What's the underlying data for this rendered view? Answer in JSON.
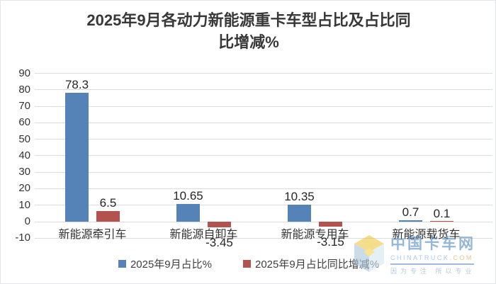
{
  "title": {
    "line1": "2025年9月各动力新能源重卡车型占比及占比同",
    "line2": "比增减%"
  },
  "chart_data": {
    "type": "bar",
    "title": "2025年9月各动力新能源重卡车型占比及占比同比增减%",
    "categories": [
      "新能源牵引车",
      "新能源自卸车",
      "新能源专用车",
      "新能源载货车"
    ],
    "series": [
      {
        "name": "2025年9月占比%",
        "color": "#5683b7",
        "values": [
          78.3,
          10.65,
          10.35,
          0.7
        ]
      },
      {
        "name": "2025年9月占比同比增减%",
        "color": "#b2534f",
        "values": [
          6.5,
          -3.45,
          -3.15,
          0.1
        ]
      }
    ],
    "ylabel": "",
    "xlabel": "",
    "ylim": [
      -10,
      90
    ],
    "ytick_step": 10,
    "grid": true,
    "legend_position": "bottom",
    "gridline_color": "#dcdcdc"
  },
  "watermark": {
    "site_name": "中国卡车网",
    "domain": "CHINATRUCK",
    "domain_suffix": ".COM",
    "tagline": "因为专注 所以专业"
  }
}
